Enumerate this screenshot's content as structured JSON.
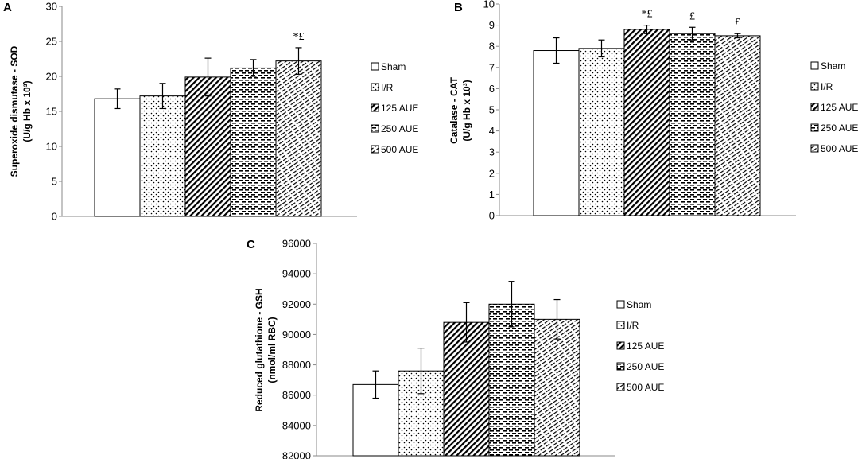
{
  "patterns": [
    "solid",
    "dots",
    "diagonal",
    "dashes",
    "slashes"
  ],
  "chart_data": [
    {
      "type": "bar",
      "panel": "A",
      "ylabel_line1": "Superoxide dismutase - SOD",
      "ylabel_line2": "(U/g  Hb x 10³)",
      "ylim": [
        0,
        30
      ],
      "yticks": [
        0,
        5,
        10,
        15,
        20,
        25,
        30
      ],
      "tick_labels": [
        "0",
        "5",
        "10",
        "15",
        "20",
        "25",
        "30"
      ],
      "categories": [
        "Sham",
        "I/R",
        "125 AUE",
        "250 AUE",
        "500 AUE"
      ],
      "values": [
        16.8,
        17.2,
        19.9,
        21.2,
        22.2
      ],
      "errors": [
        1.4,
        1.8,
        2.7,
        1.2,
        1.9
      ],
      "annotations": [
        "",
        "",
        "",
        "",
        "*£"
      ],
      "legend": [
        "Sham",
        "I/R",
        "125 AUE",
        "250 AUE",
        "500 AUE"
      ]
    },
    {
      "type": "bar",
      "panel": "B",
      "ylabel_line1": "Catalase - CAT",
      "ylabel_line2": "(U/g  Hb x 10³)",
      "ylim": [
        0,
        10
      ],
      "yticks": [
        0,
        1,
        2,
        3,
        4,
        5,
        6,
        7,
        8,
        9,
        10
      ],
      "tick_labels": [
        "0",
        "1",
        "2",
        "3",
        "4",
        "5",
        "6",
        "7",
        "8",
        "9",
        "10"
      ],
      "categories": [
        "Sham",
        "I/R",
        "125 AUE",
        "250 AUE",
        "500 AUE"
      ],
      "values": [
        7.8,
        7.9,
        8.8,
        8.6,
        8.5
      ],
      "errors": [
        0.6,
        0.4,
        0.2,
        0.3,
        0.1
      ],
      "annotations": [
        "",
        "",
        "*£",
        "£",
        "£"
      ],
      "legend": [
        "Sham",
        "I/R",
        "125 AUE",
        "250 AUE",
        "500 AUE"
      ]
    },
    {
      "type": "bar",
      "panel": "C",
      "ylabel_line1": "Reduced glutathione - GSH",
      "ylabel_line2": "(nmol/ml RBC)",
      "ylim": [
        82000,
        96000
      ],
      "yticks": [
        82000,
        84000,
        86000,
        88000,
        90000,
        92000,
        94000,
        96000
      ],
      "tick_labels": [
        "82000",
        "84000",
        "86000",
        "88000",
        "90000",
        "92000",
        "94000",
        "96000"
      ],
      "categories": [
        "Sham",
        "I/R",
        "125 AUE",
        "250 AUE",
        "500 AUE"
      ],
      "values": [
        86700,
        87600,
        90800,
        92000,
        91000
      ],
      "errors": [
        900,
        1500,
        1300,
        1500,
        1300
      ],
      "annotations": [
        "",
        "",
        "",
        "",
        ""
      ],
      "legend": [
        "Sham",
        "I/R",
        "125 AUE",
        "250 AUE",
        "500 AUE"
      ]
    }
  ]
}
